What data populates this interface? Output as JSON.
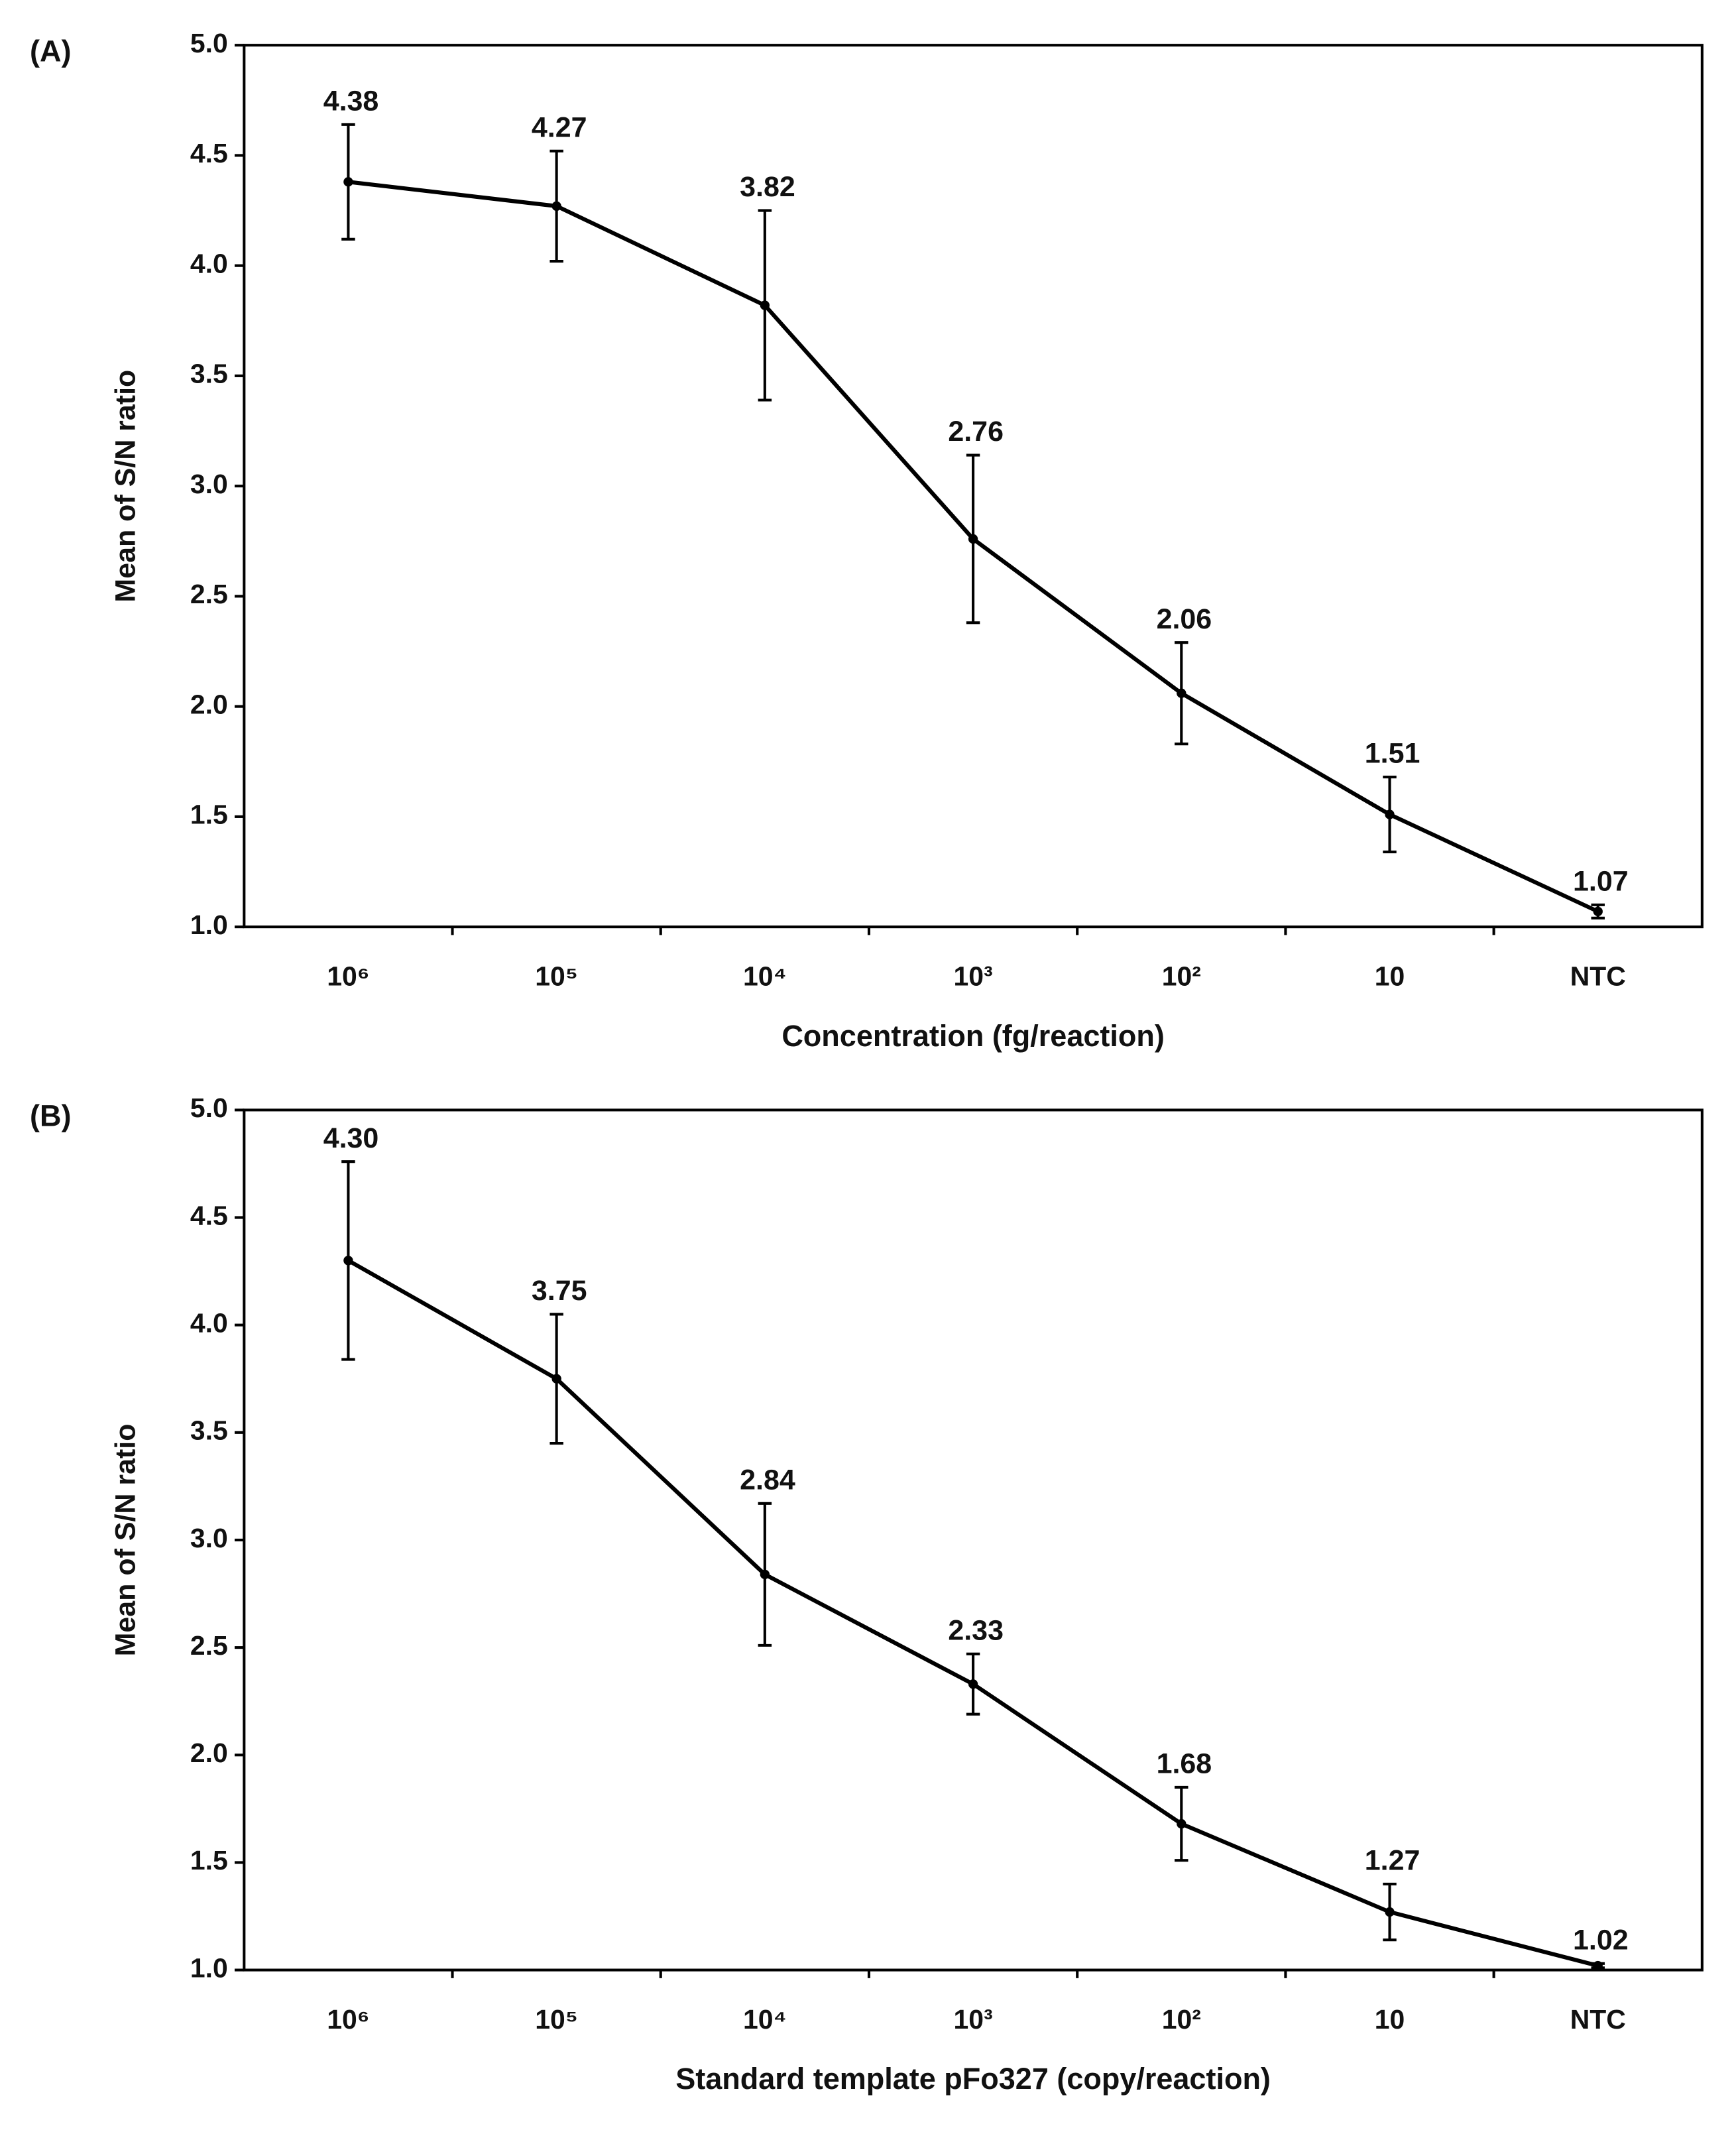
{
  "chart_data": [
    {
      "type": "line",
      "panel": "(A)",
      "ylabel": "Mean of S/N ratio",
      "xlabel": "Concentration (fg/reaction)",
      "categories": [
        "10⁶",
        "10⁵",
        "10⁴",
        "10³",
        "10²",
        "10",
        "NTC"
      ],
      "series": [
        {
          "color": "#000000",
          "values": [
            4.38,
            4.27,
            3.82,
            2.76,
            2.06,
            1.51,
            1.07
          ],
          "value_labels": [
            "4.38",
            "4.27",
            "3.82",
            "2.76",
            "2.06",
            "1.51",
            "1.07"
          ],
          "errors": [
            0.26,
            0.25,
            0.43,
            0.38,
            0.23,
            0.17,
            0.03
          ]
        }
      ],
      "ylim": [
        1,
        5
      ],
      "yticks": [
        {
          "value": 1,
          "label": "1.0"
        },
        {
          "value": 1.5,
          "label": "1.5"
        },
        {
          "value": 2,
          "label": "2.0"
        },
        {
          "value": 2.5,
          "label": "2.5"
        },
        {
          "value": 3,
          "label": "3.0"
        },
        {
          "value": 3.5,
          "label": "3.5"
        },
        {
          "value": 4,
          "label": "4.0"
        },
        {
          "value": 4.5,
          "label": "4.5"
        },
        {
          "value": 5,
          "label": "5.0"
        }
      ]
    },
    {
      "type": "line",
      "panel": "(B)",
      "ylabel": "Mean of S/N ratio",
      "xlabel": "Standard template pFo327 (copy/reaction)",
      "categories": [
        "10⁶",
        "10⁵",
        "10⁴",
        "10³",
        "10²",
        "10",
        "NTC"
      ],
      "series": [
        {
          "color": "#000000",
          "values": [
            4.3,
            3.75,
            2.84,
            2.33,
            1.68,
            1.27,
            1.02
          ],
          "value_labels": [
            "4.30",
            "3.75",
            "2.84",
            "2.33",
            "1.68",
            "1.27",
            "1.02"
          ],
          "errors": [
            0.46,
            0.3,
            0.33,
            0.14,
            0.17,
            0.13,
            0.01
          ]
        }
      ],
      "ylim": [
        1,
        5
      ],
      "yticks": [
        {
          "value": 1,
          "label": "1.0"
        },
        {
          "value": 1.5,
          "label": "1.5"
        },
        {
          "value": 2,
          "label": "2.0"
        },
        {
          "value": 2.5,
          "label": "2.5"
        },
        {
          "value": 3,
          "label": "3.0"
        },
        {
          "value": 3.5,
          "label": "3.5"
        },
        {
          "value": 4,
          "label": "4.0"
        },
        {
          "value": 4.5,
          "label": "4.5"
        },
        {
          "value": 5,
          "label": "5.0"
        }
      ]
    }
  ]
}
